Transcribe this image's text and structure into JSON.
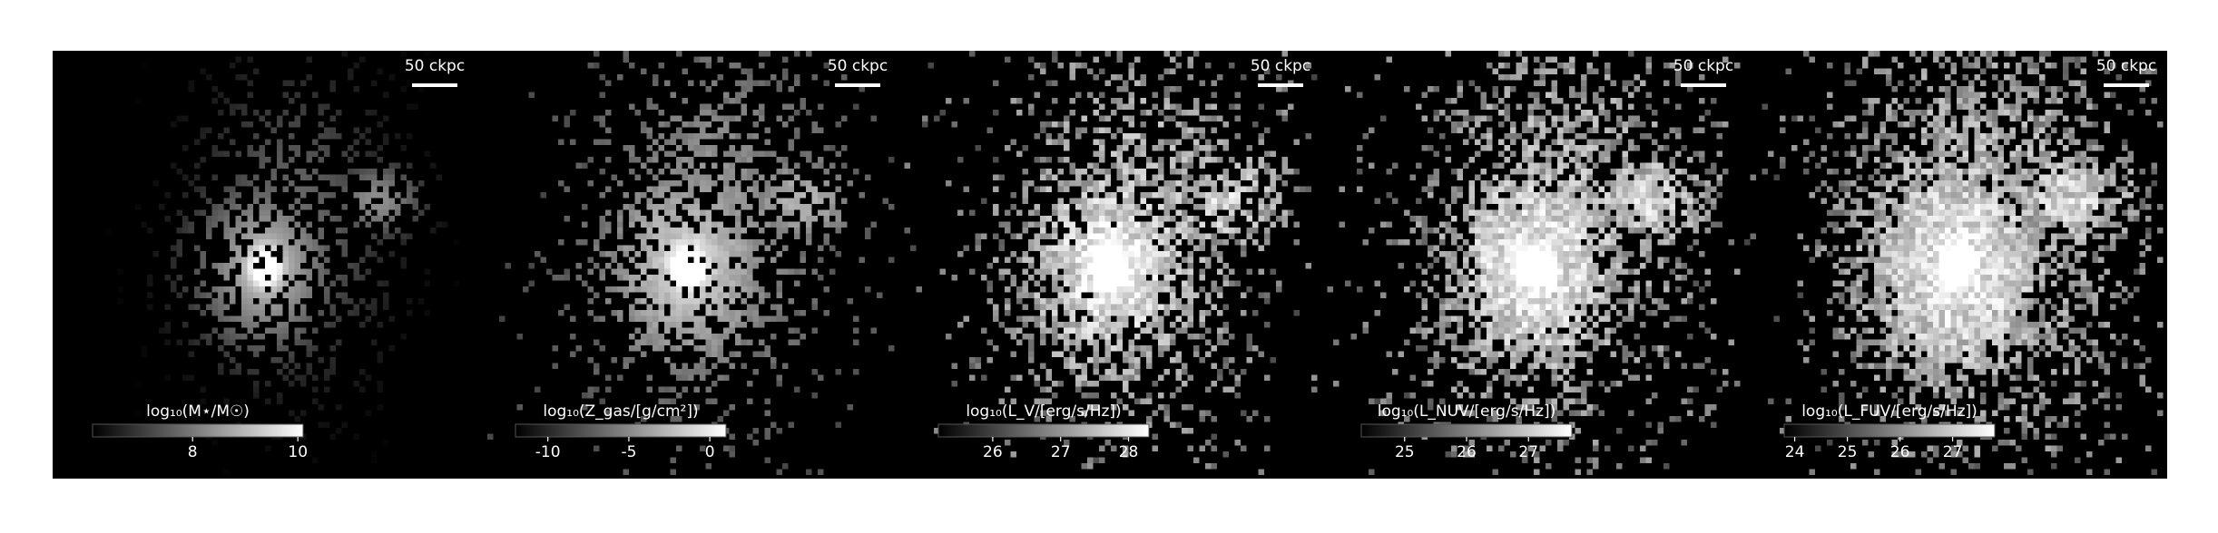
{
  "chart_data": [
    {
      "type": "image",
      "colorbar_label": "log₁₀(M⋆/M☉)",
      "scale_bar": "50 ckpc",
      "clim": [
        6.1,
        10.1
      ],
      "cticks": [
        8,
        10
      ]
    },
    {
      "type": "image",
      "colorbar_label": "log₁₀(Z_gas/[g/cm²])",
      "scale_bar": "50 ckpc",
      "clim": [
        -12,
        1
      ],
      "cticks": [
        -10,
        -5,
        0
      ]
    },
    {
      "type": "image",
      "colorbar_label": "log₁₀(L_V/[erg/s/Hz])",
      "scale_bar": "50 ckpc",
      "clim": [
        25.2,
        28.3
      ],
      "cticks": [
        26,
        27,
        28
      ]
    },
    {
      "type": "image",
      "colorbar_label": "log₁₀(L_NUV/[erg/s/Hz])",
      "scale_bar": "50 ckpc",
      "clim": [
        24.3,
        27.7
      ],
      "cticks": [
        25,
        26,
        27
      ]
    },
    {
      "type": "image",
      "colorbar_label": "log₁₀(L_FUV/[erg/s/Hz])",
      "scale_bar": "50 ckpc",
      "clim": [
        23.8,
        27.8
      ],
      "cticks": [
        24,
        25,
        26,
        27
      ]
    }
  ]
}
